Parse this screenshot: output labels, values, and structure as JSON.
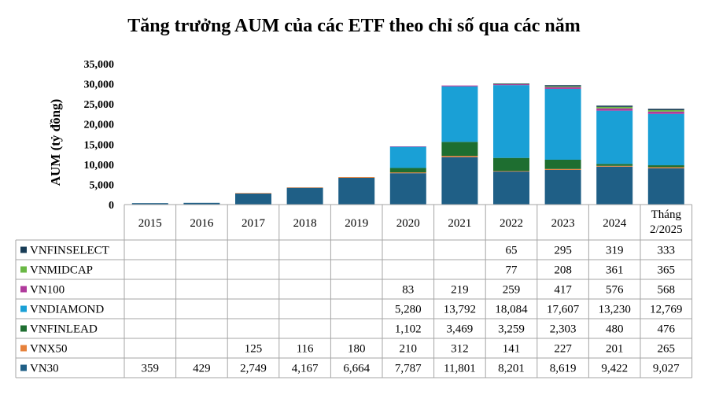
{
  "chart_data": {
    "type": "bar",
    "stacked": true,
    "title": "Tăng trưởng AUM của các ETF theo chỉ số qua các năm",
    "ylabel": "AUM (tỷ đồng)",
    "ylim": [
      0,
      35000
    ],
    "yticks": [
      "0",
      "5,000",
      "10,000",
      "15,000",
      "20,000",
      "25,000",
      "30,000",
      "35,000"
    ],
    "categories": [
      "2015",
      "2016",
      "2017",
      "2018",
      "2019",
      "2020",
      "2021",
      "2022",
      "2023",
      "2024",
      "Tháng 2/2025"
    ],
    "series": [
      {
        "name": "VN30",
        "color": "#1f5f86",
        "values": [
          359,
          429,
          2749,
          4167,
          6664,
          7787,
          11801,
          8201,
          8619,
          9422,
          9027
        ],
        "labels": [
          "359",
          "429",
          "2,749",
          "4,167",
          "6,664",
          "7,787",
          "11,801",
          "8,201",
          "8,619",
          "9,422",
          "9,027"
        ]
      },
      {
        "name": "VNX50",
        "color": "#e6813b",
        "values": [
          null,
          null,
          125,
          116,
          180,
          210,
          312,
          141,
          227,
          201,
          265
        ],
        "labels": [
          "",
          "",
          "125",
          "116",
          "180",
          "210",
          "312",
          "141",
          "227",
          "201",
          "265"
        ]
      },
      {
        "name": "VNFINLEAD",
        "color": "#1e6e30",
        "values": [
          null,
          null,
          null,
          null,
          null,
          1102,
          3469,
          3259,
          2303,
          480,
          476
        ],
        "labels": [
          "",
          "",
          "",
          "",
          "",
          "1,102",
          "3,469",
          "3,259",
          "2,303",
          "480",
          "476"
        ]
      },
      {
        "name": "VNDIAMOND",
        "color": "#1aa0d6",
        "values": [
          null,
          null,
          null,
          null,
          null,
          5280,
          13792,
          18084,
          17607,
          13230,
          12769
        ],
        "labels": [
          "",
          "",
          "",
          "",
          "",
          "5,280",
          "13,792",
          "18,084",
          "17,607",
          "13,230",
          "12,769"
        ]
      },
      {
        "name": "VN100",
        "color": "#b03a9c",
        "values": [
          null,
          null,
          null,
          null,
          null,
          83,
          219,
          259,
          417,
          576,
          568
        ],
        "labels": [
          "",
          "",
          "",
          "",
          "",
          "83",
          "219",
          "259",
          "417",
          "576",
          "568"
        ]
      },
      {
        "name": "VNMIDCAP",
        "color": "#6ab845",
        "values": [
          null,
          null,
          null,
          null,
          null,
          null,
          null,
          77,
          208,
          361,
          365
        ],
        "labels": [
          "",
          "",
          "",
          "",
          "",
          "",
          "",
          "77",
          "208",
          "361",
          "365"
        ]
      },
      {
        "name": "VNFINSELECT",
        "color": "#183c56",
        "values": [
          null,
          null,
          null,
          null,
          null,
          null,
          null,
          65,
          295,
          319,
          333
        ],
        "labels": [
          "",
          "",
          "",
          "",
          "",
          "",
          "",
          "65",
          "295",
          "319",
          "333"
        ]
      }
    ],
    "table_row_order": [
      "VNFINSELECT",
      "VNMIDCAP",
      "VN100",
      "VNDIAMOND",
      "VNFINLEAD",
      "VNX50",
      "VN30"
    ],
    "legend": "data-table",
    "grid": false
  }
}
